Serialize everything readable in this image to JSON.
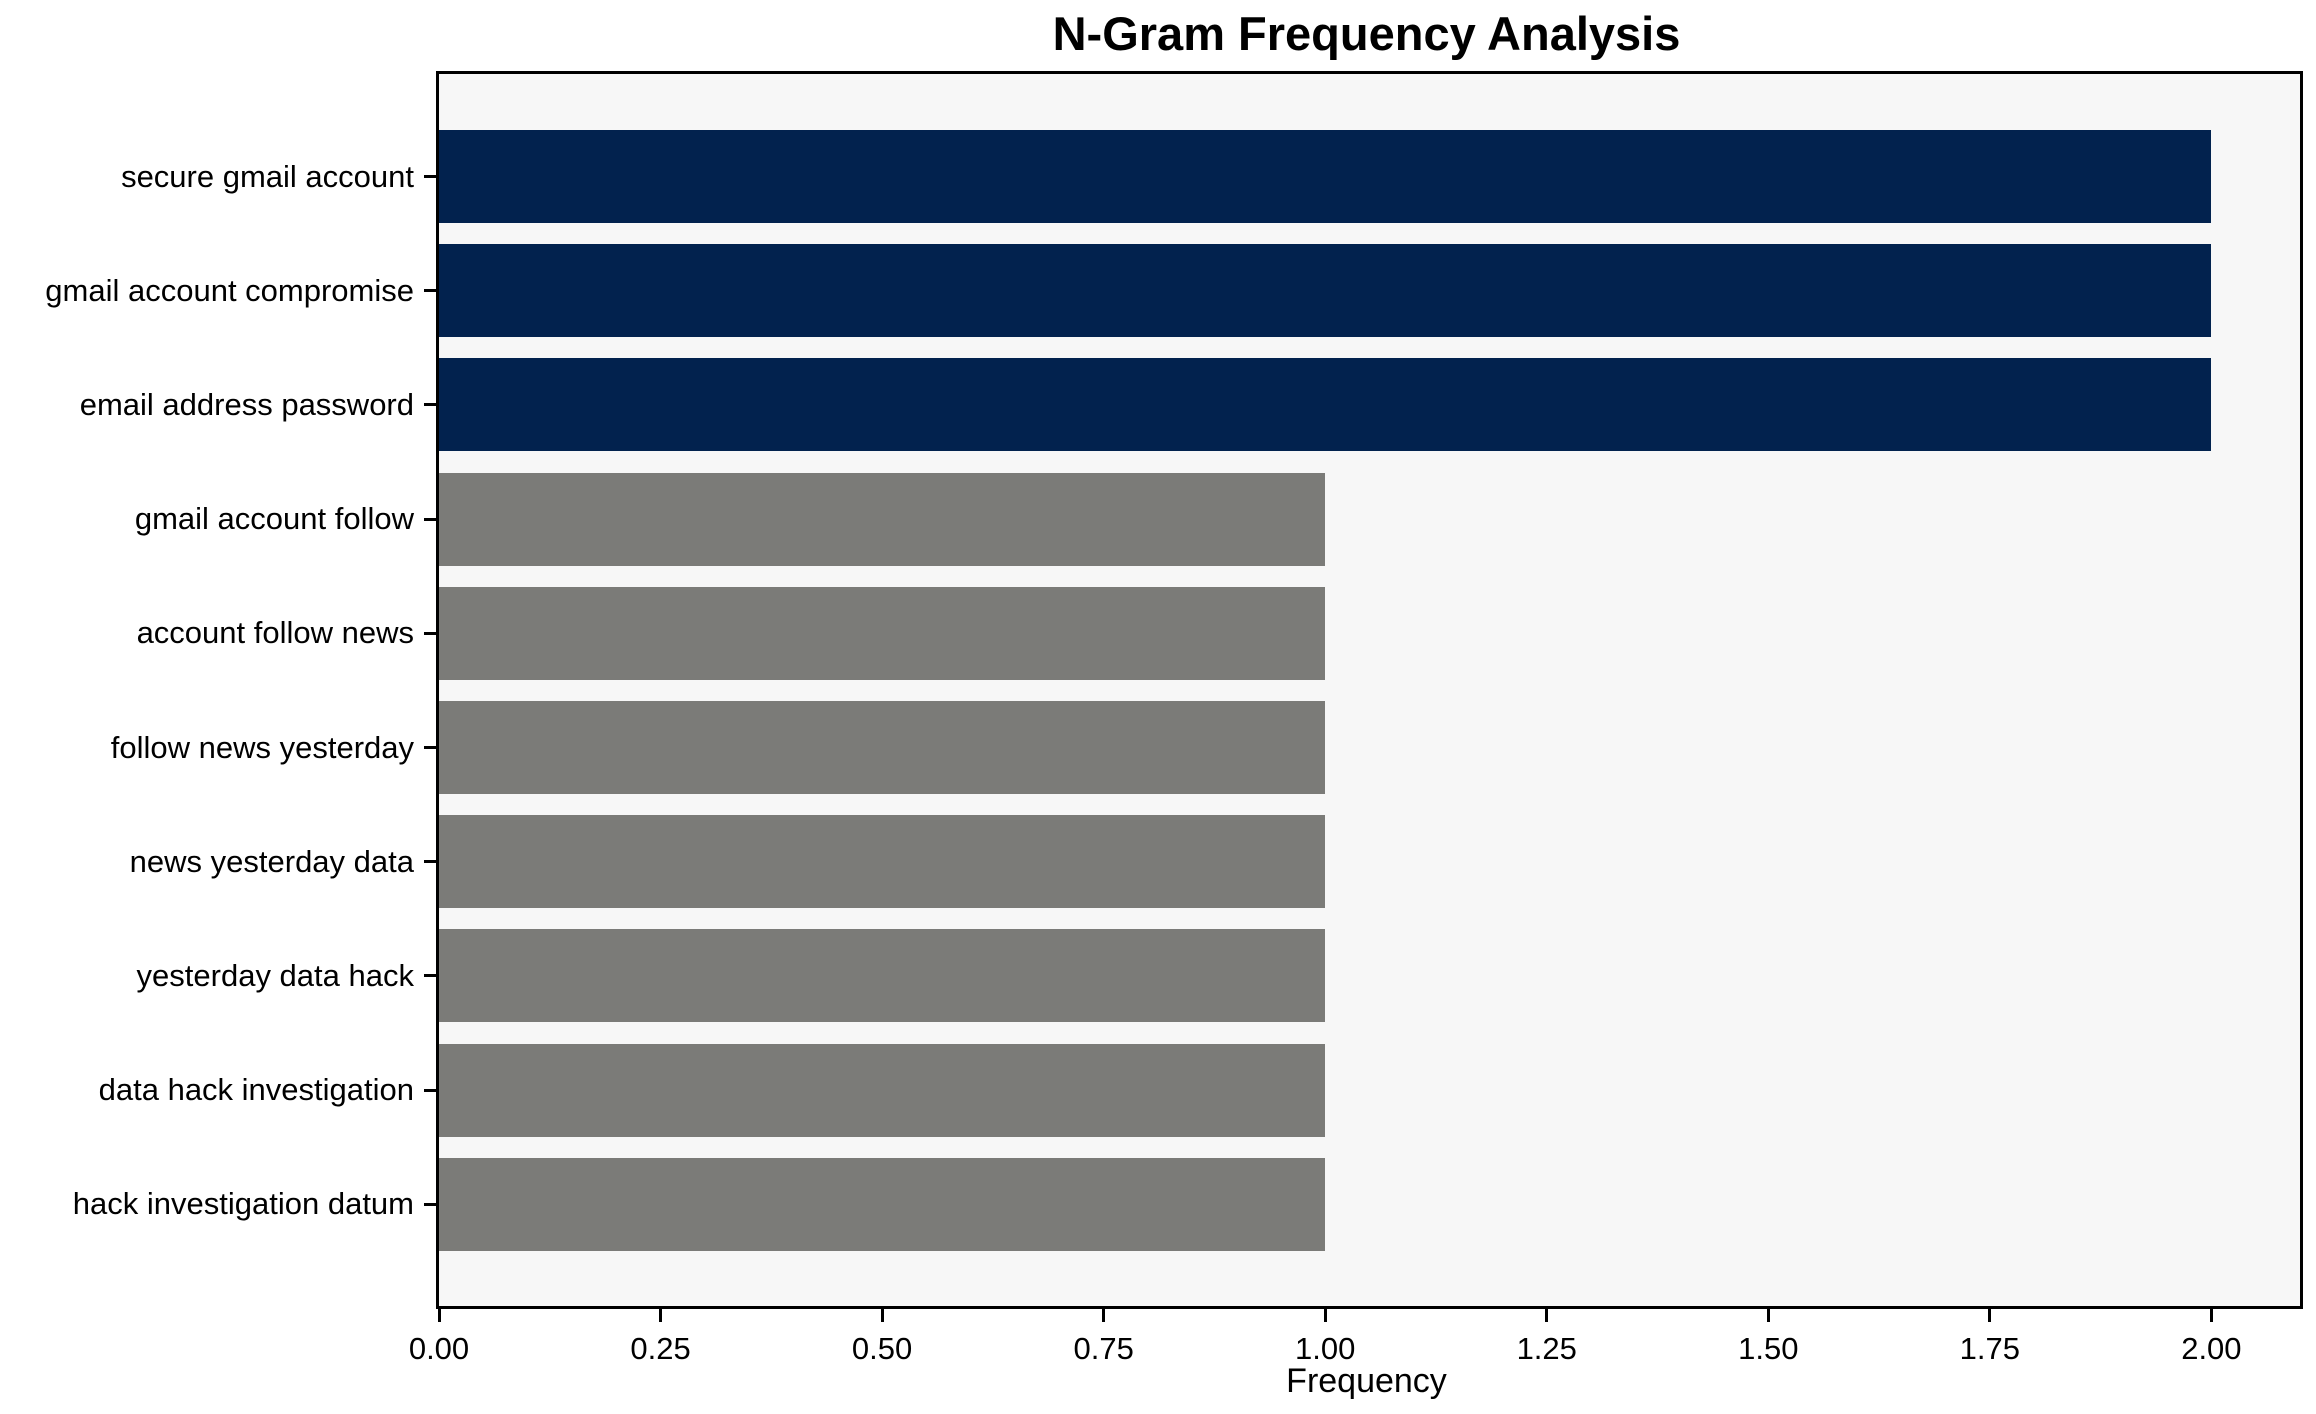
{
  "chart_data": {
    "type": "bar",
    "orientation": "horizontal",
    "title": "N-Gram Frequency Analysis",
    "xlabel": "Frequency",
    "ylabel": "",
    "categories": [
      "secure gmail account",
      "gmail account compromise",
      "email address password",
      "gmail account follow",
      "account follow news",
      "follow news yesterday",
      "news yesterday data",
      "yesterday data hack",
      "data hack investigation",
      "hack investigation datum"
    ],
    "values": [
      2,
      2,
      2,
      1,
      1,
      1,
      1,
      1,
      1,
      1
    ],
    "bar_colors": [
      "#02224e",
      "#02224e",
      "#02224e",
      "#7b7b78",
      "#7b7b78",
      "#7b7b78",
      "#7b7b78",
      "#7b7b78",
      "#7b7b78",
      "#7b7b78"
    ],
    "xlim": [
      0,
      2.1
    ],
    "xticks": [
      0,
      0.25,
      0.5,
      0.75,
      1.0,
      1.25,
      1.5,
      1.75,
      2.0
    ],
    "xtick_labels": [
      "0.00",
      "0.25",
      "0.50",
      "0.75",
      "1.00",
      "1.25",
      "1.50",
      "1.75",
      "2.00"
    ],
    "grid": false,
    "legend": null,
    "colors": {
      "highlight": "#02224e",
      "base": "#7b7b78",
      "plot_bg": "#f7f7f7",
      "fig_bg": "#ffffff",
      "spine": "#000000"
    }
  }
}
